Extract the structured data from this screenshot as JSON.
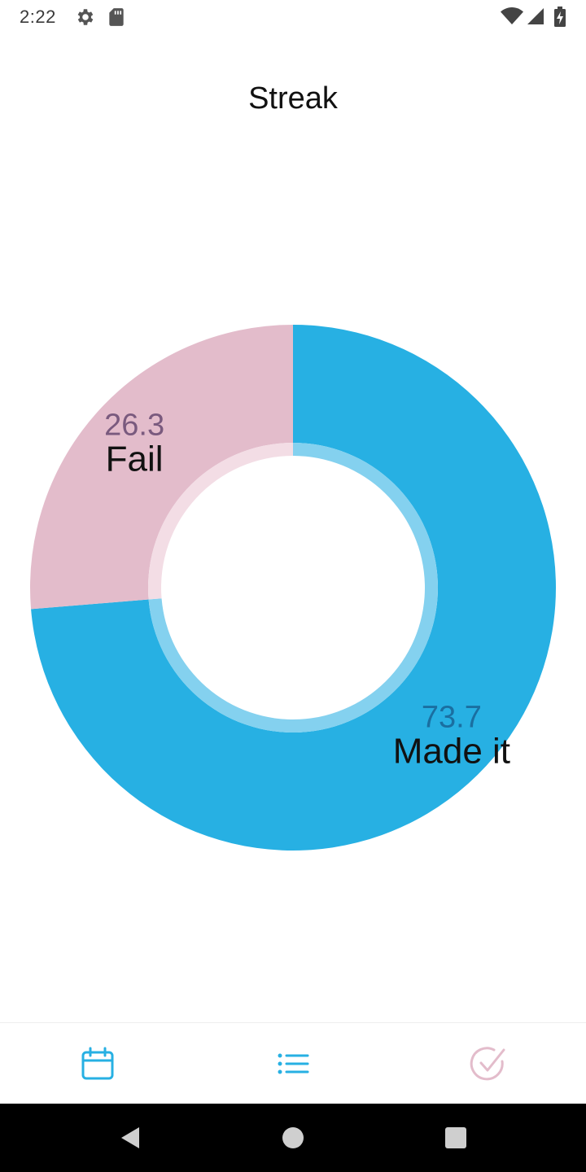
{
  "status_bar": {
    "time": "2:22",
    "icons": [
      "gear-icon",
      "sd-card-icon",
      "wifi-icon",
      "signal-icon",
      "battery-charging-icon"
    ]
  },
  "header": {
    "title": "Streak"
  },
  "chart_data": {
    "type": "pie",
    "style": "donut",
    "categories": [
      "Made it",
      "Fail"
    ],
    "values": [
      73.7,
      26.3
    ],
    "value_labels": [
      "73.7",
      "26.3"
    ],
    "colors": [
      "#27b0e3",
      "#e3bccb"
    ],
    "inner_ring_colors": [
      "#84d1ef",
      "#f3dde5"
    ],
    "value_label_colors": [
      "#1a6fa1",
      "#7a5a7e"
    ],
    "start_angle": "12 o'clock",
    "direction": "clockwise"
  },
  "bottom_nav": {
    "items": [
      {
        "icon": "calendar-icon",
        "color": "#27b0e3"
      },
      {
        "icon": "list-icon",
        "color": "#27b0e3"
      },
      {
        "icon": "check-circle-icon",
        "color": "#e3bccb"
      }
    ]
  },
  "system_nav": {
    "buttons": [
      "back-icon",
      "home-icon",
      "recents-icon"
    ]
  }
}
